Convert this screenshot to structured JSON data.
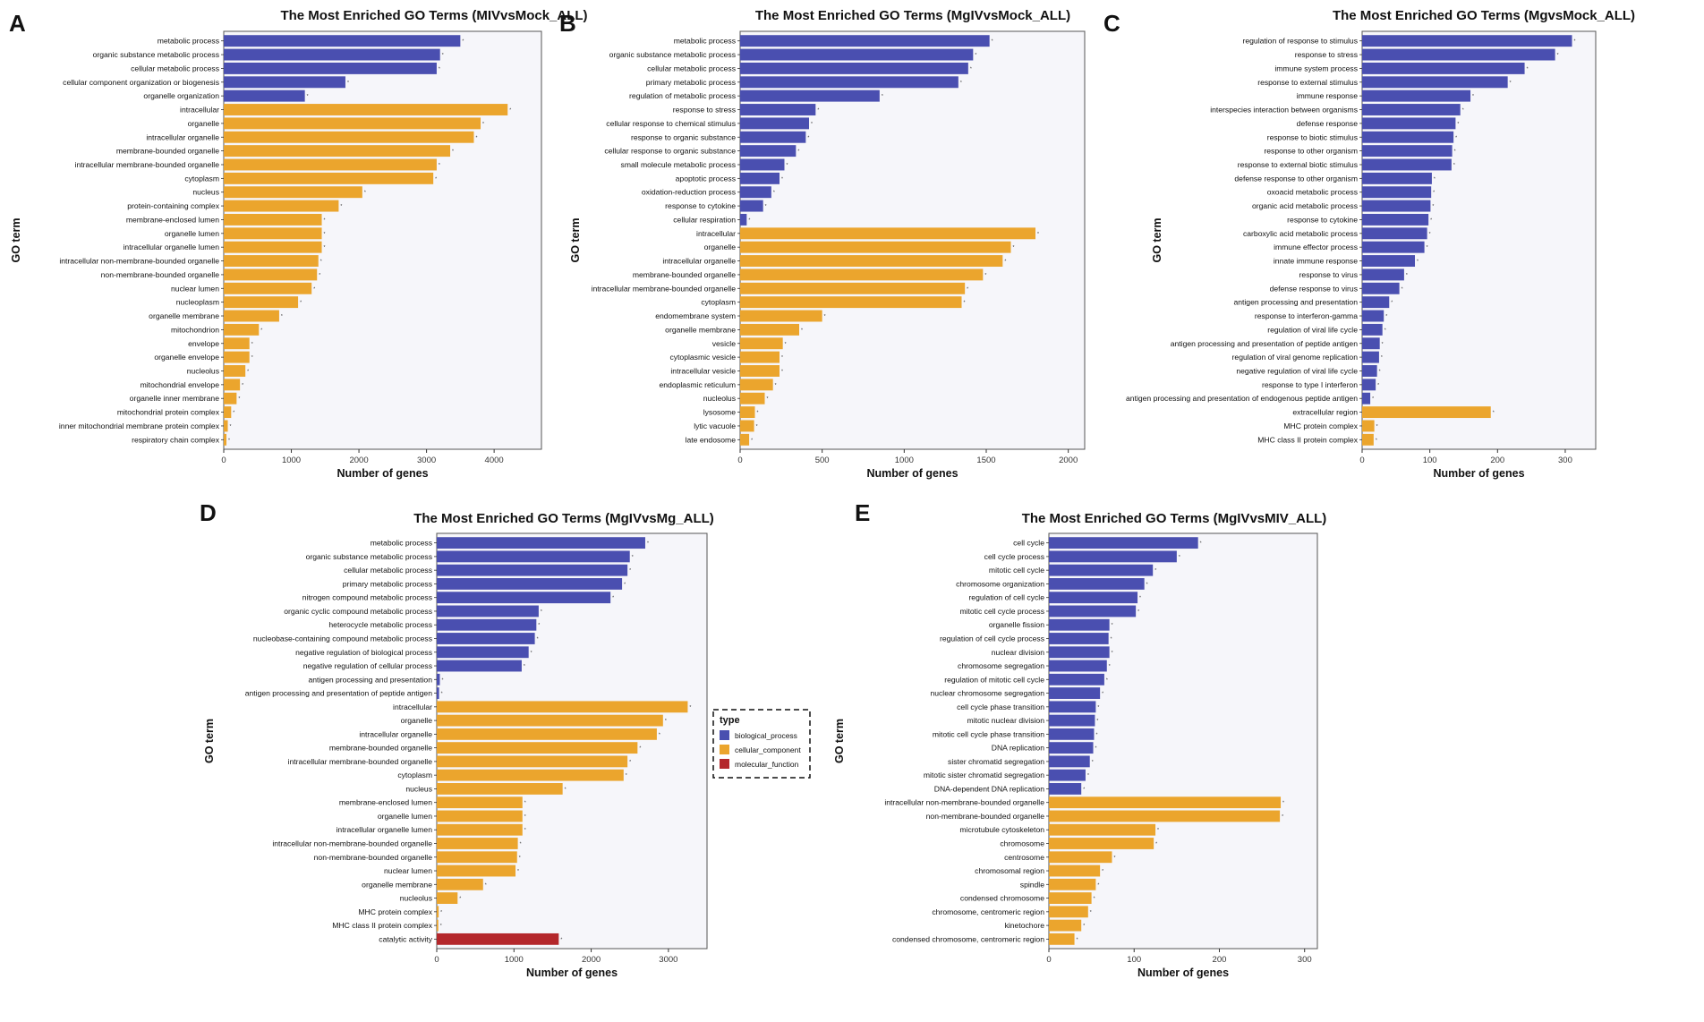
{
  "colors": {
    "biological_process": "#4a4fb0",
    "cellular_component": "#eba52d",
    "molecular_function": "#b4272b",
    "panel_bg": "#f6f6fa"
  },
  "legend": {
    "title": "type",
    "items": [
      {
        "label": "biological_process",
        "key": "biological_process"
      },
      {
        "label": "cellular_component",
        "key": "cellular_component"
      },
      {
        "label": "molecular_function",
        "key": "molecular_function"
      }
    ]
  },
  "chart_data": [
    {
      "panel": "A",
      "type": "bar",
      "orientation": "horizontal",
      "title": "The Most Enriched GO Terms (MIVvsMock_ALL)",
      "xlabel": "Number of genes",
      "ylabel": "GO term",
      "xlim": [
        0,
        4700
      ],
      "xticks": [
        0,
        1000,
        2000,
        3000,
        4000
      ],
      "categories": [
        "metabolic process",
        "organic substance metabolic process",
        "cellular metabolic process",
        "cellular component organization or biogenesis",
        "organelle organization",
        "intracellular",
        "organelle",
        "intracellular organelle",
        "membrane-bounded organelle",
        "intracellular membrane-bounded organelle",
        "cytoplasm",
        "nucleus",
        "protein-containing complex",
        "membrane-enclosed lumen",
        "organelle lumen",
        "intracellular organelle lumen",
        "intracellular non-membrane-bounded organelle",
        "non-membrane-bounded organelle",
        "nuclear lumen",
        "nucleoplasm",
        "organelle membrane",
        "mitochondrion",
        "envelope",
        "organelle envelope",
        "nucleolus",
        "mitochondrial envelope",
        "organelle inner membrane",
        "mitochondrial protein complex",
        "inner mitochondrial membrane protein complex",
        "respiratory chain complex"
      ],
      "values": [
        3500,
        3200,
        3150,
        1800,
        1200,
        4200,
        3800,
        3700,
        3350,
        3150,
        3100,
        2050,
        1700,
        1450,
        1450,
        1450,
        1400,
        1380,
        1300,
        1100,
        820,
        520,
        380,
        380,
        320,
        240,
        190,
        110,
        60,
        40
      ],
      "types": [
        "biological_process",
        "biological_process",
        "biological_process",
        "biological_process",
        "biological_process",
        "cellular_component",
        "cellular_component",
        "cellular_component",
        "cellular_component",
        "cellular_component",
        "cellular_component",
        "cellular_component",
        "cellular_component",
        "cellular_component",
        "cellular_component",
        "cellular_component",
        "cellular_component",
        "cellular_component",
        "cellular_component",
        "cellular_component",
        "cellular_component",
        "cellular_component",
        "cellular_component",
        "cellular_component",
        "cellular_component",
        "cellular_component",
        "cellular_component",
        "cellular_component",
        "cellular_component",
        "cellular_component"
      ]
    },
    {
      "panel": "B",
      "type": "bar",
      "orientation": "horizontal",
      "title": "The Most Enriched GO Terms (MgIVvsMock_ALL)",
      "xlabel": "Number of genes",
      "ylabel": "GO term",
      "xlim": [
        0,
        2100
      ],
      "xticks": [
        0,
        500,
        1000,
        1500,
        2000
      ],
      "categories": [
        "metabolic process",
        "organic substance metabolic process",
        "cellular metabolic process",
        "primary metabolic process",
        "regulation of metabolic process",
        "response to stress",
        "cellular response to chemical stimulus",
        "response to organic substance",
        "cellular response to organic substance",
        "small molecule metabolic process",
        "apoptotic process",
        "oxidation-reduction process",
        "response to cytokine",
        "cellular respiration",
        "intracellular",
        "organelle",
        "intracellular organelle",
        "membrane-bounded organelle",
        "intracellular membrane-bounded organelle",
        "cytoplasm",
        "endomembrane system",
        "organelle membrane",
        "vesicle",
        "cytoplasmic vesicle",
        "intracellular vesicle",
        "endoplasmic reticulum",
        "nucleolus",
        "lysosome",
        "lytic vacuole",
        "late endosome"
      ],
      "values": [
        1520,
        1420,
        1390,
        1330,
        850,
        460,
        420,
        400,
        340,
        270,
        240,
        190,
        140,
        40,
        1800,
        1650,
        1600,
        1480,
        1370,
        1350,
        500,
        360,
        260,
        240,
        240,
        200,
        150,
        90,
        85,
        55
      ],
      "types": [
        "biological_process",
        "biological_process",
        "biological_process",
        "biological_process",
        "biological_process",
        "biological_process",
        "biological_process",
        "biological_process",
        "biological_process",
        "biological_process",
        "biological_process",
        "biological_process",
        "biological_process",
        "biological_process",
        "cellular_component",
        "cellular_component",
        "cellular_component",
        "cellular_component",
        "cellular_component",
        "cellular_component",
        "cellular_component",
        "cellular_component",
        "cellular_component",
        "cellular_component",
        "cellular_component",
        "cellular_component",
        "cellular_component",
        "cellular_component",
        "cellular_component",
        "cellular_component"
      ]
    },
    {
      "panel": "C",
      "type": "bar",
      "orientation": "horizontal",
      "title": "The Most Enriched GO Terms (MgvsMock_ALL)",
      "xlabel": "Number of genes",
      "ylabel": "GO term",
      "xlim": [
        0,
        345
      ],
      "xticks": [
        0,
        100,
        200,
        300
      ],
      "categories": [
        "regulation of response to stimulus",
        "response to stress",
        "immune system process",
        "response to external stimulus",
        "immune response",
        "interspecies interaction between organisms",
        "defense response",
        "response to biotic stimulus",
        "response to other organism",
        "response to external biotic stimulus",
        "defense response to other organism",
        "oxoacid metabolic process",
        "organic acid metabolic process",
        "response to cytokine",
        "carboxylic acid metabolic process",
        "immune effector process",
        "innate immune response",
        "response to virus",
        "defense response to virus",
        "antigen processing and presentation",
        "response to interferon-gamma",
        "regulation of viral life cycle",
        "antigen processing and presentation of peptide antigen",
        "regulation of viral genome replication",
        "negative regulation of viral life cycle",
        "response to type I interferon",
        "antigen processing and presentation of endogenous peptide antigen",
        "extracellular region",
        "MHC protein complex",
        "MHC class II protein complex"
      ],
      "values": [
        310,
        285,
        240,
        215,
        160,
        145,
        138,
        135,
        133,
        132,
        103,
        102,
        101,
        98,
        96,
        92,
        78,
        62,
        55,
        40,
        32,
        30,
        26,
        25,
        22,
        20,
        12,
        190,
        18,
        17
      ],
      "types": [
        "biological_process",
        "biological_process",
        "biological_process",
        "biological_process",
        "biological_process",
        "biological_process",
        "biological_process",
        "biological_process",
        "biological_process",
        "biological_process",
        "biological_process",
        "biological_process",
        "biological_process",
        "biological_process",
        "biological_process",
        "biological_process",
        "biological_process",
        "biological_process",
        "biological_process",
        "biological_process",
        "biological_process",
        "biological_process",
        "biological_process",
        "biological_process",
        "biological_process",
        "biological_process",
        "biological_process",
        "cellular_component",
        "cellular_component",
        "cellular_component"
      ]
    },
    {
      "panel": "D",
      "type": "bar",
      "orientation": "horizontal",
      "title": "The Most Enriched GO Terms (MgIVvsMg_ALL)",
      "xlabel": "Number of genes",
      "ylabel": "GO term",
      "xlim": [
        0,
        3500
      ],
      "xticks": [
        0,
        1000,
        2000,
        3000
      ],
      "categories": [
        "metabolic process",
        "organic substance metabolic process",
        "cellular metabolic process",
        "primary metabolic process",
        "nitrogen compound metabolic process",
        "organic cyclic compound metabolic process",
        "heterocycle metabolic process",
        "nucleobase-containing compound metabolic process",
        "negative regulation of biological process",
        "negative regulation of cellular process",
        "antigen processing and presentation",
        "antigen processing and presentation of peptide antigen",
        "intracellular",
        "organelle",
        "intracellular organelle",
        "membrane-bounded organelle",
        "intracellular membrane-bounded organelle",
        "cytoplasm",
        "nucleus",
        "membrane-enclosed lumen",
        "organelle lumen",
        "intracellular organelle lumen",
        "intracellular non-membrane-bounded organelle",
        "non-membrane-bounded organelle",
        "nuclear lumen",
        "organelle membrane",
        "nucleolus",
        "MHC protein complex",
        "MHC class II protein complex",
        "catalytic activity"
      ],
      "values": [
        2700,
        2500,
        2470,
        2400,
        2250,
        1320,
        1290,
        1270,
        1190,
        1100,
        40,
        30,
        3250,
        2930,
        2850,
        2600,
        2470,
        2420,
        1630,
        1110,
        1110,
        1110,
        1050,
        1040,
        1020,
        600,
        270,
        25,
        20,
        1580
      ],
      "types": [
        "biological_process",
        "biological_process",
        "biological_process",
        "biological_process",
        "biological_process",
        "biological_process",
        "biological_process",
        "biological_process",
        "biological_process",
        "biological_process",
        "biological_process",
        "biological_process",
        "cellular_component",
        "cellular_component",
        "cellular_component",
        "cellular_component",
        "cellular_component",
        "cellular_component",
        "cellular_component",
        "cellular_component",
        "cellular_component",
        "cellular_component",
        "cellular_component",
        "cellular_component",
        "cellular_component",
        "cellular_component",
        "cellular_component",
        "cellular_component",
        "cellular_component",
        "molecular_function"
      ]
    },
    {
      "panel": "E",
      "type": "bar",
      "orientation": "horizontal",
      "title": "The Most Enriched GO Terms (MgIVvsMIV_ALL)",
      "xlabel": "Number of genes",
      "ylabel": "GO term",
      "xlim": [
        0,
        315
      ],
      "xticks": [
        0,
        100,
        200,
        300
      ],
      "categories": [
        "cell cycle",
        "cell cycle process",
        "mitotic cell cycle",
        "chromosome organization",
        "regulation of cell cycle",
        "mitotic cell cycle process",
        "organelle fission",
        "regulation of cell cycle process",
        "nuclear division",
        "chromosome segregation",
        "regulation of mitotic cell cycle",
        "nuclear chromosome segregation",
        "cell cycle phase transition",
        "mitotic nuclear division",
        "mitotic cell cycle phase transition",
        "DNA replication",
        "sister chromatid segregation",
        "mitotic sister chromatid segregation",
        "DNA-dependent DNA replication",
        "intracellular non-membrane-bounded organelle",
        "non-membrane-bounded organelle",
        "microtubule cytoskeleton",
        "chromosome",
        "centrosome",
        "chromosomal region",
        "spindle",
        "condensed chromosome",
        "chromosome, centromeric region",
        "kinetochore",
        "condensed chromosome, centromeric region"
      ],
      "values": [
        175,
        150,
        122,
        112,
        104,
        102,
        71,
        70,
        71,
        68,
        65,
        60,
        55,
        54,
        53,
        52,
        48,
        43,
        38,
        272,
        271,
        125,
        123,
        74,
        60,
        55,
        50,
        46,
        38,
        30
      ],
      "types": [
        "biological_process",
        "biological_process",
        "biological_process",
        "biological_process",
        "biological_process",
        "biological_process",
        "biological_process",
        "biological_process",
        "biological_process",
        "biological_process",
        "biological_process",
        "biological_process",
        "biological_process",
        "biological_process",
        "biological_process",
        "biological_process",
        "biological_process",
        "biological_process",
        "biological_process",
        "cellular_component",
        "cellular_component",
        "cellular_component",
        "cellular_component",
        "cellular_component",
        "cellular_component",
        "cellular_component",
        "cellular_component",
        "cellular_component",
        "cellular_component",
        "cellular_component"
      ]
    }
  ]
}
